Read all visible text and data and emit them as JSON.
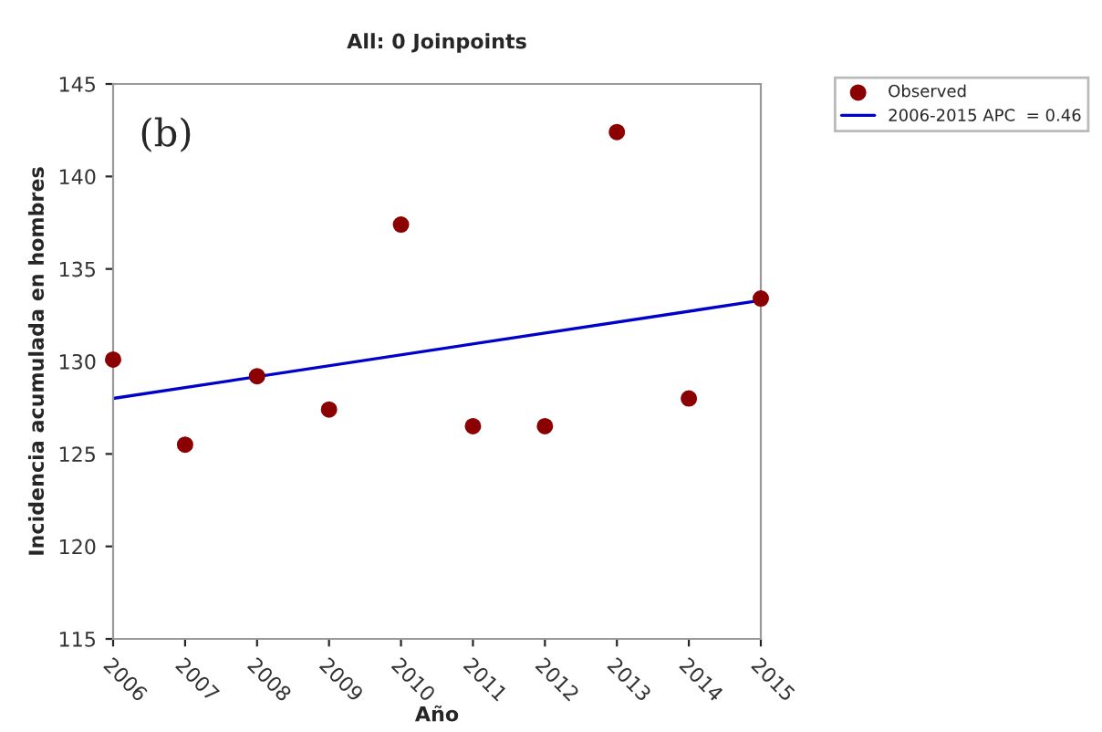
{
  "chart_data": {
    "type": "scatter",
    "title": "All: 0 Joinpoints",
    "xlabel": "Año",
    "ylabel": "Incidencia acumulada en hombres",
    "annotations": [
      "(b)"
    ],
    "x": [
      2006,
      2007,
      2008,
      2009,
      2010,
      2011,
      2012,
      2013,
      2014,
      2015
    ],
    "series": [
      {
        "name": "Observed",
        "color": "#8b0000",
        "marker": "circle",
        "values": [
          130.1,
          125.5,
          129.2,
          127.4,
          137.4,
          126.5,
          126.5,
          142.4,
          128.0,
          133.4
        ]
      },
      {
        "name": "2006-2015 APC  = 0.46",
        "type": "line",
        "color": "#0000cc",
        "x": [
          2006,
          2015
        ],
        "values": [
          128.0,
          133.3
        ]
      }
    ],
    "xlim": [
      2006,
      2015
    ],
    "xticks": [
      2006,
      2007,
      2008,
      2009,
      2010,
      2011,
      2012,
      2013,
      2014,
      2015
    ],
    "ylim": [
      115,
      145
    ],
    "yticks": [
      115,
      120,
      125,
      130,
      135,
      140,
      145
    ],
    "grid": false,
    "legend": "top right"
  }
}
